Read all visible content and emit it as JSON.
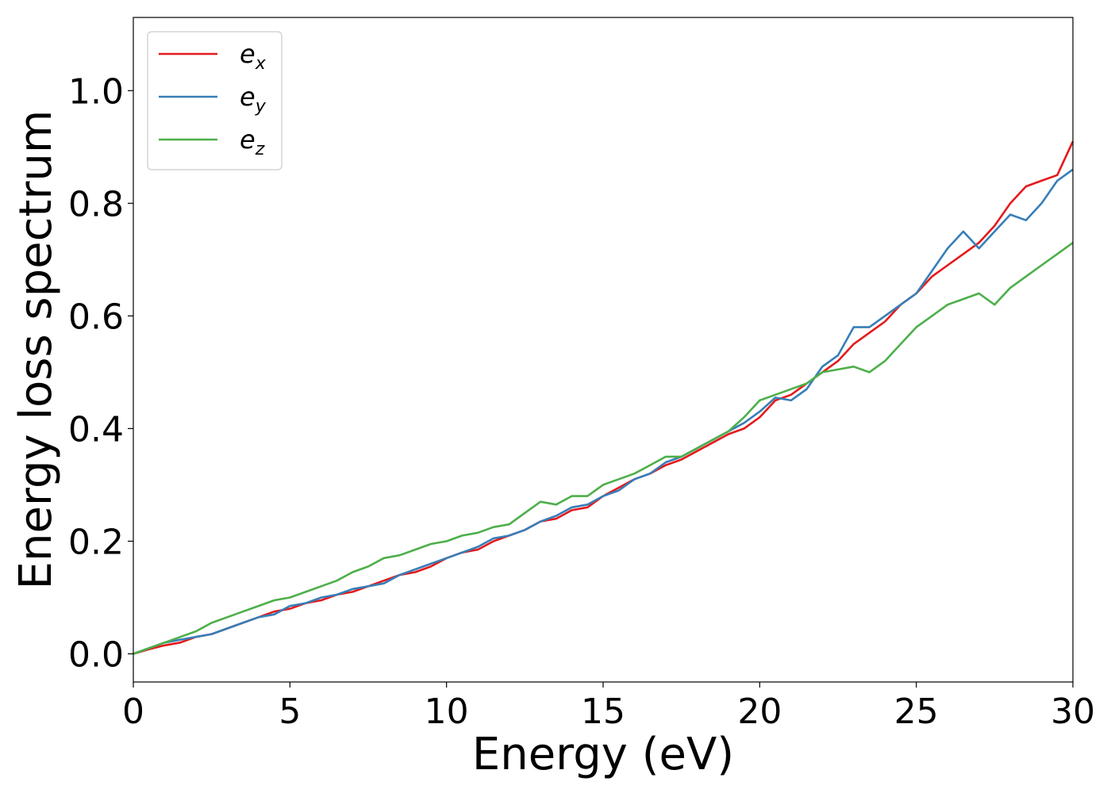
{
  "chart_data": {
    "type": "line",
    "title": "",
    "xlabel": "Energy (eV)",
    "ylabel": "Energy loss spectrum",
    "xlim": [
      0,
      30
    ],
    "ylim": [
      -0.05,
      1.13
    ],
    "xticks": [
      0,
      5,
      10,
      15,
      20,
      25,
      30
    ],
    "xtick_labels": [
      "0",
      "5",
      "10",
      "15",
      "20",
      "25",
      "30"
    ],
    "yticks": [
      0.0,
      0.2,
      0.4,
      0.6,
      0.8,
      1.0
    ],
    "ytick_labels": [
      "0.0",
      "0.2",
      "0.4",
      "0.6",
      "0.8",
      "1.0"
    ],
    "grid": false,
    "legend": {
      "position": "top-left",
      "entries": [
        {
          "base": "e",
          "sub": "x"
        },
        {
          "base": "e",
          "sub": "y"
        },
        {
          "base": "e",
          "sub": "z"
        }
      ]
    },
    "series": [
      {
        "name": "ex",
        "color": "#e41a1c",
        "x": [
          0,
          0.5,
          1,
          1.5,
          2,
          2.5,
          3,
          3.5,
          4,
          4.5,
          5,
          5.5,
          6,
          6.5,
          7,
          7.5,
          8,
          8.5,
          9,
          9.5,
          10,
          10.5,
          11,
          11.5,
          12,
          12.5,
          13,
          13.5,
          14,
          14.5,
          15,
          15.5,
          16,
          16.5,
          17,
          17.5,
          18,
          18.5,
          19,
          19.5,
          20,
          20.5,
          21,
          21.5,
          22,
          22.5,
          23,
          23.5,
          24,
          24.5,
          25,
          25.5,
          26,
          26.5,
          27,
          27.5,
          28,
          28.5,
          29,
          29.5,
          30
        ],
        "y": [
          0.0,
          0.008,
          0.015,
          0.02,
          0.03,
          0.035,
          0.045,
          0.055,
          0.065,
          0.075,
          0.08,
          0.09,
          0.095,
          0.105,
          0.11,
          0.12,
          0.13,
          0.14,
          0.145,
          0.155,
          0.17,
          0.18,
          0.185,
          0.2,
          0.21,
          0.22,
          0.235,
          0.24,
          0.255,
          0.26,
          0.28,
          0.295,
          0.31,
          0.32,
          0.335,
          0.345,
          0.36,
          0.375,
          0.39,
          0.4,
          0.42,
          0.45,
          0.46,
          0.48,
          0.5,
          0.52,
          0.55,
          0.57,
          0.59,
          0.62,
          0.64,
          0.67,
          0.69,
          0.71,
          0.73,
          0.76,
          0.8,
          0.83,
          0.84,
          0.85,
          0.91
        ]
      },
      {
        "name": "ey",
        "color": "#377eb8",
        "x": [
          0,
          0.5,
          1,
          1.5,
          2,
          2.5,
          3,
          3.5,
          4,
          4.5,
          5,
          5.5,
          6,
          6.5,
          7,
          7.5,
          8,
          8.5,
          9,
          9.5,
          10,
          10.5,
          11,
          11.5,
          12,
          12.5,
          13,
          13.5,
          14,
          14.5,
          15,
          15.5,
          16,
          16.5,
          17,
          17.5,
          18,
          18.5,
          19,
          19.5,
          20,
          20.5,
          21,
          21.5,
          22,
          22.5,
          23,
          23.5,
          24,
          24.5,
          25,
          25.5,
          26,
          26.5,
          27,
          27.5,
          28,
          28.5,
          29,
          29.5,
          30
        ],
        "y": [
          0.0,
          0.01,
          0.02,
          0.025,
          0.03,
          0.035,
          0.045,
          0.055,
          0.065,
          0.07,
          0.085,
          0.09,
          0.1,
          0.105,
          0.115,
          0.12,
          0.125,
          0.14,
          0.15,
          0.16,
          0.17,
          0.18,
          0.19,
          0.205,
          0.21,
          0.22,
          0.235,
          0.245,
          0.26,
          0.265,
          0.28,
          0.29,
          0.31,
          0.32,
          0.34,
          0.35,
          0.365,
          0.38,
          0.395,
          0.41,
          0.43,
          0.455,
          0.45,
          0.47,
          0.51,
          0.53,
          0.58,
          0.58,
          0.6,
          0.62,
          0.64,
          0.68,
          0.72,
          0.75,
          0.72,
          0.75,
          0.78,
          0.77,
          0.8,
          0.84,
          0.86
        ]
      },
      {
        "name": "ez",
        "color": "#4daf4a",
        "x": [
          0,
          0.5,
          1,
          1.5,
          2,
          2.5,
          3,
          3.5,
          4,
          4.5,
          5,
          5.5,
          6,
          6.5,
          7,
          7.5,
          8,
          8.5,
          9,
          9.5,
          10,
          10.5,
          11,
          11.5,
          12,
          12.5,
          13,
          13.5,
          14,
          14.5,
          15,
          15.5,
          16,
          16.5,
          17,
          17.5,
          18,
          18.5,
          19,
          19.5,
          20,
          20.5,
          21,
          21.5,
          22,
          22.5,
          23,
          23.5,
          24,
          24.5,
          25,
          25.5,
          26,
          26.5,
          27,
          27.5,
          28,
          28.5,
          29,
          29.5,
          30
        ],
        "y": [
          0.0,
          0.01,
          0.02,
          0.03,
          0.04,
          0.055,
          0.065,
          0.075,
          0.085,
          0.095,
          0.1,
          0.11,
          0.12,
          0.13,
          0.145,
          0.155,
          0.17,
          0.175,
          0.185,
          0.195,
          0.2,
          0.21,
          0.215,
          0.225,
          0.23,
          0.25,
          0.27,
          0.265,
          0.28,
          0.28,
          0.3,
          0.31,
          0.32,
          0.335,
          0.35,
          0.35,
          0.365,
          0.38,
          0.395,
          0.42,
          0.45,
          0.46,
          0.47,
          0.48,
          0.5,
          0.505,
          0.51,
          0.5,
          0.52,
          0.55,
          0.58,
          0.6,
          0.62,
          0.63,
          0.64,
          0.62,
          0.65,
          0.67,
          0.69,
          0.71,
          0.73
        ]
      }
    ]
  }
}
